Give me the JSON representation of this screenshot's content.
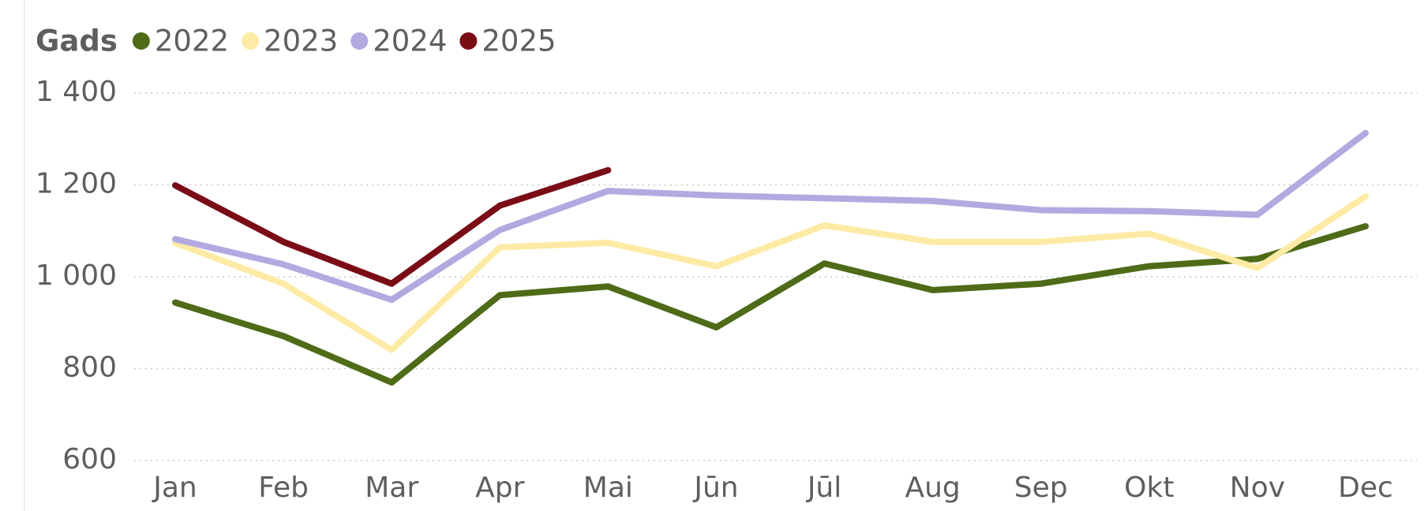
{
  "chart_data": {
    "type": "line",
    "legend_title": "Gads",
    "categories": [
      "Jan",
      "Feb",
      "Mar",
      "Apr",
      "Mai",
      "Jūn",
      "Jūl",
      "Aug",
      "Sep",
      "Okt",
      "Nov",
      "Dec"
    ],
    "series": [
      {
        "name": "2022",
        "color": "#4e6b18",
        "values": [
          944,
          871,
          770,
          960,
          979,
          890,
          1029,
          971,
          985,
          1023,
          1039,
          1110
        ]
      },
      {
        "name": "2023",
        "color": "#fdeaa5",
        "values": [
          1074,
          985,
          841,
          1064,
          1074,
          1023,
          1112,
          1076,
          1076,
          1094,
          1019,
          1175
        ]
      },
      {
        "name": "2024",
        "color": "#b3a9e1",
        "values": [
          1082,
          1027,
          950,
          1102,
          1187,
          1177,
          1171,
          1165,
          1145,
          1143,
          1135,
          1313
        ]
      },
      {
        "name": "2025",
        "color": "#7a0c16",
        "values": [
          1199,
          1076,
          985,
          1155,
          1232,
          null,
          null,
          null,
          null,
          null,
          null,
          null
        ]
      }
    ],
    "ylim": [
      600,
      1400
    ],
    "yticks": [
      600,
      800,
      {
        "value": 1000,
        "label": "1 000"
      },
      {
        "value": 1200,
        "label": "1 200"
      },
      {
        "value": 1400,
        "label": "1 400"
      }
    ],
    "grid": true
  }
}
